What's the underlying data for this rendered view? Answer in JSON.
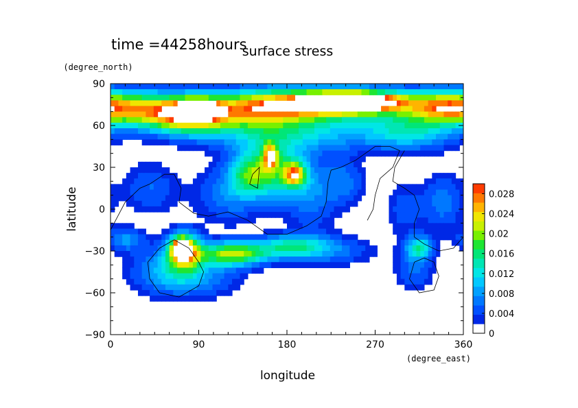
{
  "chart_data": {
    "type": "heatmap",
    "time_label": "time =44258hours",
    "title": "surface stress",
    "xlabel": "longitude",
    "ylabel": "latitude",
    "x_unit": "(degree_east)",
    "y_unit": "(degree_north)",
    "xlim": [
      0,
      360
    ],
    "ylim": [
      -90,
      90
    ],
    "x_ticks": [
      "0",
      "90",
      "180",
      "270",
      "360"
    ],
    "x_tick_values": [
      0,
      90,
      180,
      270,
      360
    ],
    "y_ticks": [
      "90",
      "60",
      "30",
      "0",
      "−30",
      "−60",
      "−90"
    ],
    "y_tick_values": [
      90,
      60,
      30,
      0,
      -30,
      -60,
      -90
    ],
    "colorbar": {
      "labels": [
        "0.028",
        "0.024",
        "0.02",
        "0.016",
        "0.012",
        "0.008",
        "0.004",
        "0"
      ],
      "label_values": [
        0.028,
        0.024,
        0.02,
        0.016,
        0.012,
        0.008,
        0.004,
        0
      ],
      "vmin": 0,
      "vmax": 0.03,
      "step": 0.002,
      "colors": [
        "#ffffff",
        "#0028e6",
        "#0050ff",
        "#0078ff",
        "#00a0ff",
        "#00c8ff",
        "#00e6e6",
        "#00e6b4",
        "#00e678",
        "#1ee632",
        "#78f000",
        "#c8f000",
        "#f0e600",
        "#ffb400",
        "#ff7800",
        "#ff3c00"
      ]
    },
    "field_centers": [
      {
        "lon": 30,
        "lat": 72,
        "value": 0.018,
        "sx": 40,
        "sy": 9
      },
      {
        "lon": 80,
        "lat": 67,
        "value": 0.024,
        "sx": 30,
        "sy": 9
      },
      {
        "lon": 90,
        "lat": 72,
        "value": 0.032,
        "sx": 12,
        "sy": 4
      },
      {
        "lon": 150,
        "lat": 72,
        "value": 0.018,
        "sx": 40,
        "sy": 9
      },
      {
        "lon": 230,
        "lat": 76,
        "value": 0.026,
        "sx": 60,
        "sy": 8
      },
      {
        "lon": 245,
        "lat": 77,
        "value": 0.034,
        "sx": 30,
        "sy": 4
      },
      {
        "lon": 340,
        "lat": 73,
        "value": 0.018,
        "sx": 30,
        "sy": 8
      },
      {
        "lon": 180,
        "lat": 55,
        "value": 0.012,
        "sx": 60,
        "sy": 10
      },
      {
        "lon": 305,
        "lat": 55,
        "value": 0.012,
        "sx": 35,
        "sy": 9
      },
      {
        "lon": 165,
        "lat": 28,
        "value": 0.016,
        "sx": 22,
        "sy": 14
      },
      {
        "lon": 188,
        "lat": 25,
        "value": 0.02,
        "sx": 8,
        "sy": 6
      },
      {
        "lon": 163,
        "lat": 38,
        "value": 0.02,
        "sx": 5,
        "sy": 6
      },
      {
        "lon": 140,
        "lat": 25,
        "value": 0.01,
        "sx": 14,
        "sy": 10
      },
      {
        "lon": 205,
        "lat": 10,
        "value": 0.007,
        "sx": 20,
        "sy": 18
      },
      {
        "lon": 120,
        "lat": 10,
        "value": 0.007,
        "sx": 25,
        "sy": 15
      },
      {
        "lon": 40,
        "lat": 15,
        "value": 0.006,
        "sx": 20,
        "sy": 14
      },
      {
        "lon": 240,
        "lat": 20,
        "value": 0.006,
        "sx": 15,
        "sy": 12
      },
      {
        "lon": 340,
        "lat": 5,
        "value": 0.007,
        "sx": 15,
        "sy": 15
      },
      {
        "lon": 300,
        "lat": 0,
        "value": 0.005,
        "sx": 15,
        "sy": 15
      },
      {
        "lon": 75,
        "lat": -30,
        "value": 0.026,
        "sx": 12,
        "sy": 9
      },
      {
        "lon": 72,
        "lat": -28,
        "value": 0.036,
        "sx": 5,
        "sy": 4
      },
      {
        "lon": 125,
        "lat": -32,
        "value": 0.022,
        "sx": 25,
        "sy": 6
      },
      {
        "lon": 185,
        "lat": -27,
        "value": 0.014,
        "sx": 25,
        "sy": 6
      },
      {
        "lon": 15,
        "lat": -22,
        "value": 0.008,
        "sx": 15,
        "sy": 6
      },
      {
        "lon": 60,
        "lat": -45,
        "value": 0.01,
        "sx": 28,
        "sy": 12
      },
      {
        "lon": 100,
        "lat": -50,
        "value": 0.005,
        "sx": 30,
        "sy": 10
      },
      {
        "lon": 230,
        "lat": -30,
        "value": 0.006,
        "sx": 30,
        "sy": 8
      },
      {
        "lon": 315,
        "lat": -28,
        "value": 0.014,
        "sx": 10,
        "sy": 6
      },
      {
        "lon": 310,
        "lat": -45,
        "value": 0.006,
        "sx": 15,
        "sy": 10
      }
    ],
    "coastlines": [
      {
        "name": "africa-outline",
        "points": [
          [
            0,
            -15
          ],
          [
            15,
            5
          ],
          [
            30,
            15
          ],
          [
            40,
            18
          ],
          [
            55,
            25
          ],
          [
            65,
            25
          ],
          [
            72,
            15
          ],
          [
            70,
            5
          ],
          [
            85,
            -3
          ],
          [
            100,
            -5
          ],
          [
            120,
            -2
          ],
          [
            140,
            -8
          ],
          [
            160,
            -18
          ],
          [
            180,
            -18
          ],
          [
            200,
            -12
          ],
          [
            215,
            -5
          ],
          [
            220,
            5
          ],
          [
            222,
            20
          ],
          [
            225,
            28
          ],
          [
            235,
            30
          ],
          [
            250,
            35
          ],
          [
            260,
            40
          ],
          [
            270,
            45
          ],
          [
            285,
            45
          ],
          [
            295,
            42
          ],
          [
            288,
            30
          ],
          [
            275,
            22
          ],
          [
            270,
            10
          ],
          [
            268,
            0
          ],
          [
            262,
            -8
          ]
        ]
      },
      {
        "name": "america-outline",
        "points": [
          [
            300,
            42
          ],
          [
            290,
            30
          ],
          [
            288,
            20
          ],
          [
            300,
            15
          ],
          [
            310,
            10
          ],
          [
            315,
            0
          ],
          [
            310,
            -10
          ],
          [
            310,
            -20
          ],
          [
            320,
            -25
          ],
          [
            335,
            -30
          ],
          [
            350,
            -28
          ],
          [
            360,
            -20
          ]
        ]
      },
      {
        "name": "south-africa-outline",
        "points": [
          [
            50,
            -28
          ],
          [
            65,
            -22
          ],
          [
            80,
            -28
          ],
          [
            90,
            -38
          ],
          [
            95,
            -45
          ],
          [
            90,
            -55
          ],
          [
            70,
            -63
          ],
          [
            50,
            -60
          ],
          [
            40,
            -50
          ],
          [
            38,
            -38
          ],
          [
            50,
            -28
          ]
        ]
      },
      {
        "name": "south-america-outline",
        "points": [
          [
            310,
            -38
          ],
          [
            320,
            -35
          ],
          [
            330,
            -38
          ],
          [
            335,
            -48
          ],
          [
            330,
            -58
          ],
          [
            315,
            -60
          ],
          [
            305,
            -50
          ],
          [
            310,
            -38
          ]
        ]
      },
      {
        "name": "small-island-outline",
        "points": [
          [
            145,
            25
          ],
          [
            152,
            30
          ],
          [
            150,
            15
          ],
          [
            142,
            18
          ],
          [
            145,
            25
          ]
        ]
      }
    ]
  }
}
